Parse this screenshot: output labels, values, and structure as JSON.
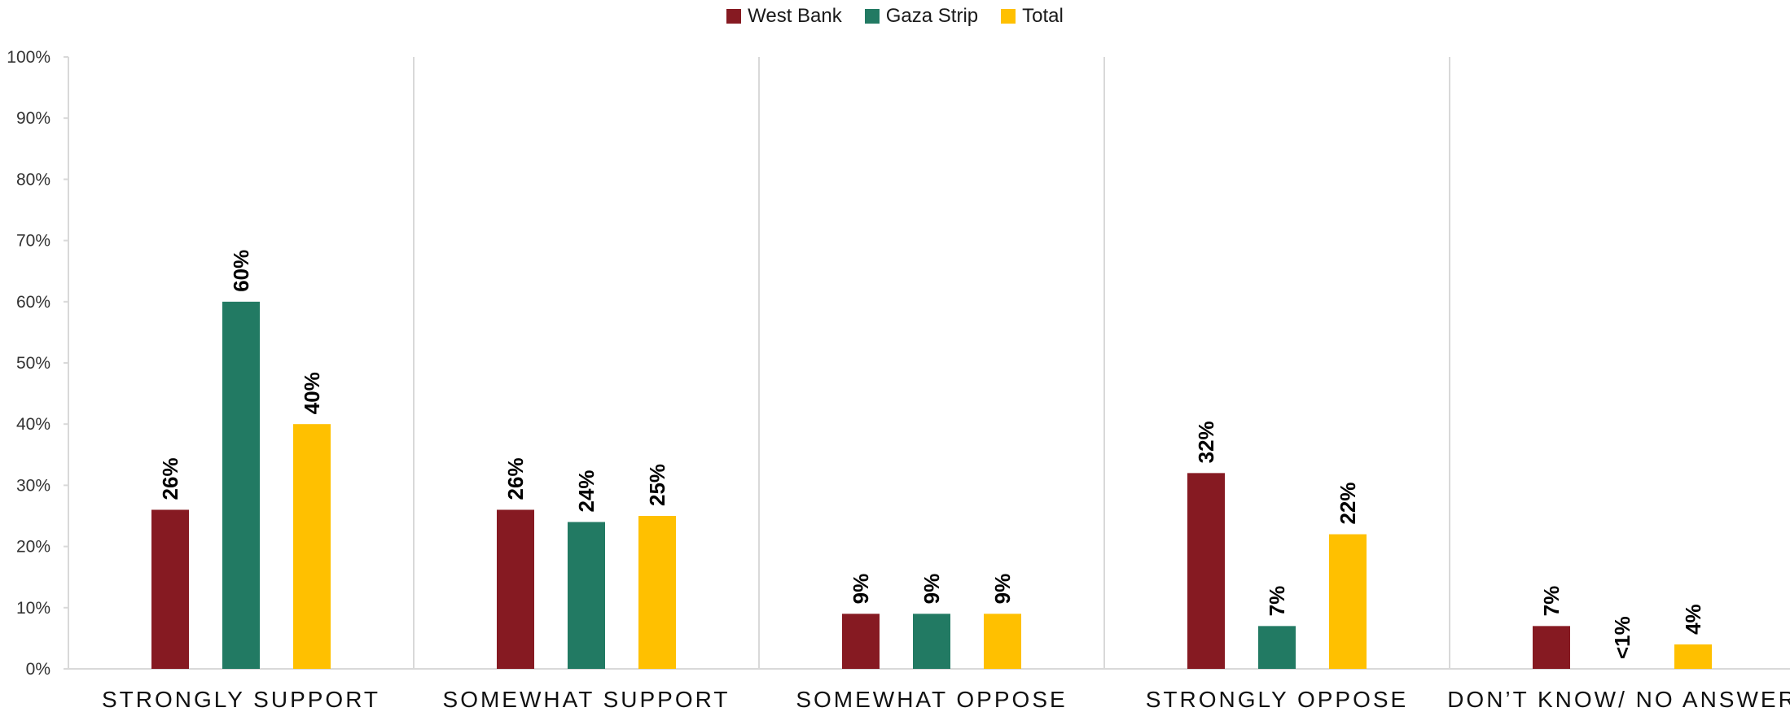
{
  "chart_data": {
    "type": "bar",
    "categories": [
      "STRONGLY SUPPORT",
      "SOMEWHAT SUPPORT",
      "SOMEWHAT OPPOSE",
      "STRONGLY OPPOSE",
      "DON’T KNOW/ NO ANSWER"
    ],
    "series": [
      {
        "name": "West Bank",
        "color": "#861a22",
        "values": [
          26,
          26,
          9,
          32,
          7
        ],
        "labels": [
          "26%",
          "26%",
          "9%",
          "32%",
          "7%"
        ]
      },
      {
        "name": "Gaza Strip",
        "color": "#227a63",
        "values": [
          60,
          24,
          9,
          7,
          0
        ],
        "labels": [
          "60%",
          "24%",
          "9%",
          "7%",
          "<1%"
        ]
      },
      {
        "name": "Total",
        "color": "#ffc000",
        "values": [
          40,
          25,
          9,
          22,
          4
        ],
        "labels": [
          "40%",
          "25%",
          "9%",
          "22%",
          "4%"
        ]
      }
    ],
    "yticks": [
      "0%",
      "10%",
      "20%",
      "30%",
      "40%",
      "50%",
      "60%",
      "70%",
      "80%",
      "90%",
      "100%"
    ],
    "ylim": [
      0,
      100
    ],
    "legend_position": "top-center",
    "grid": false
  }
}
